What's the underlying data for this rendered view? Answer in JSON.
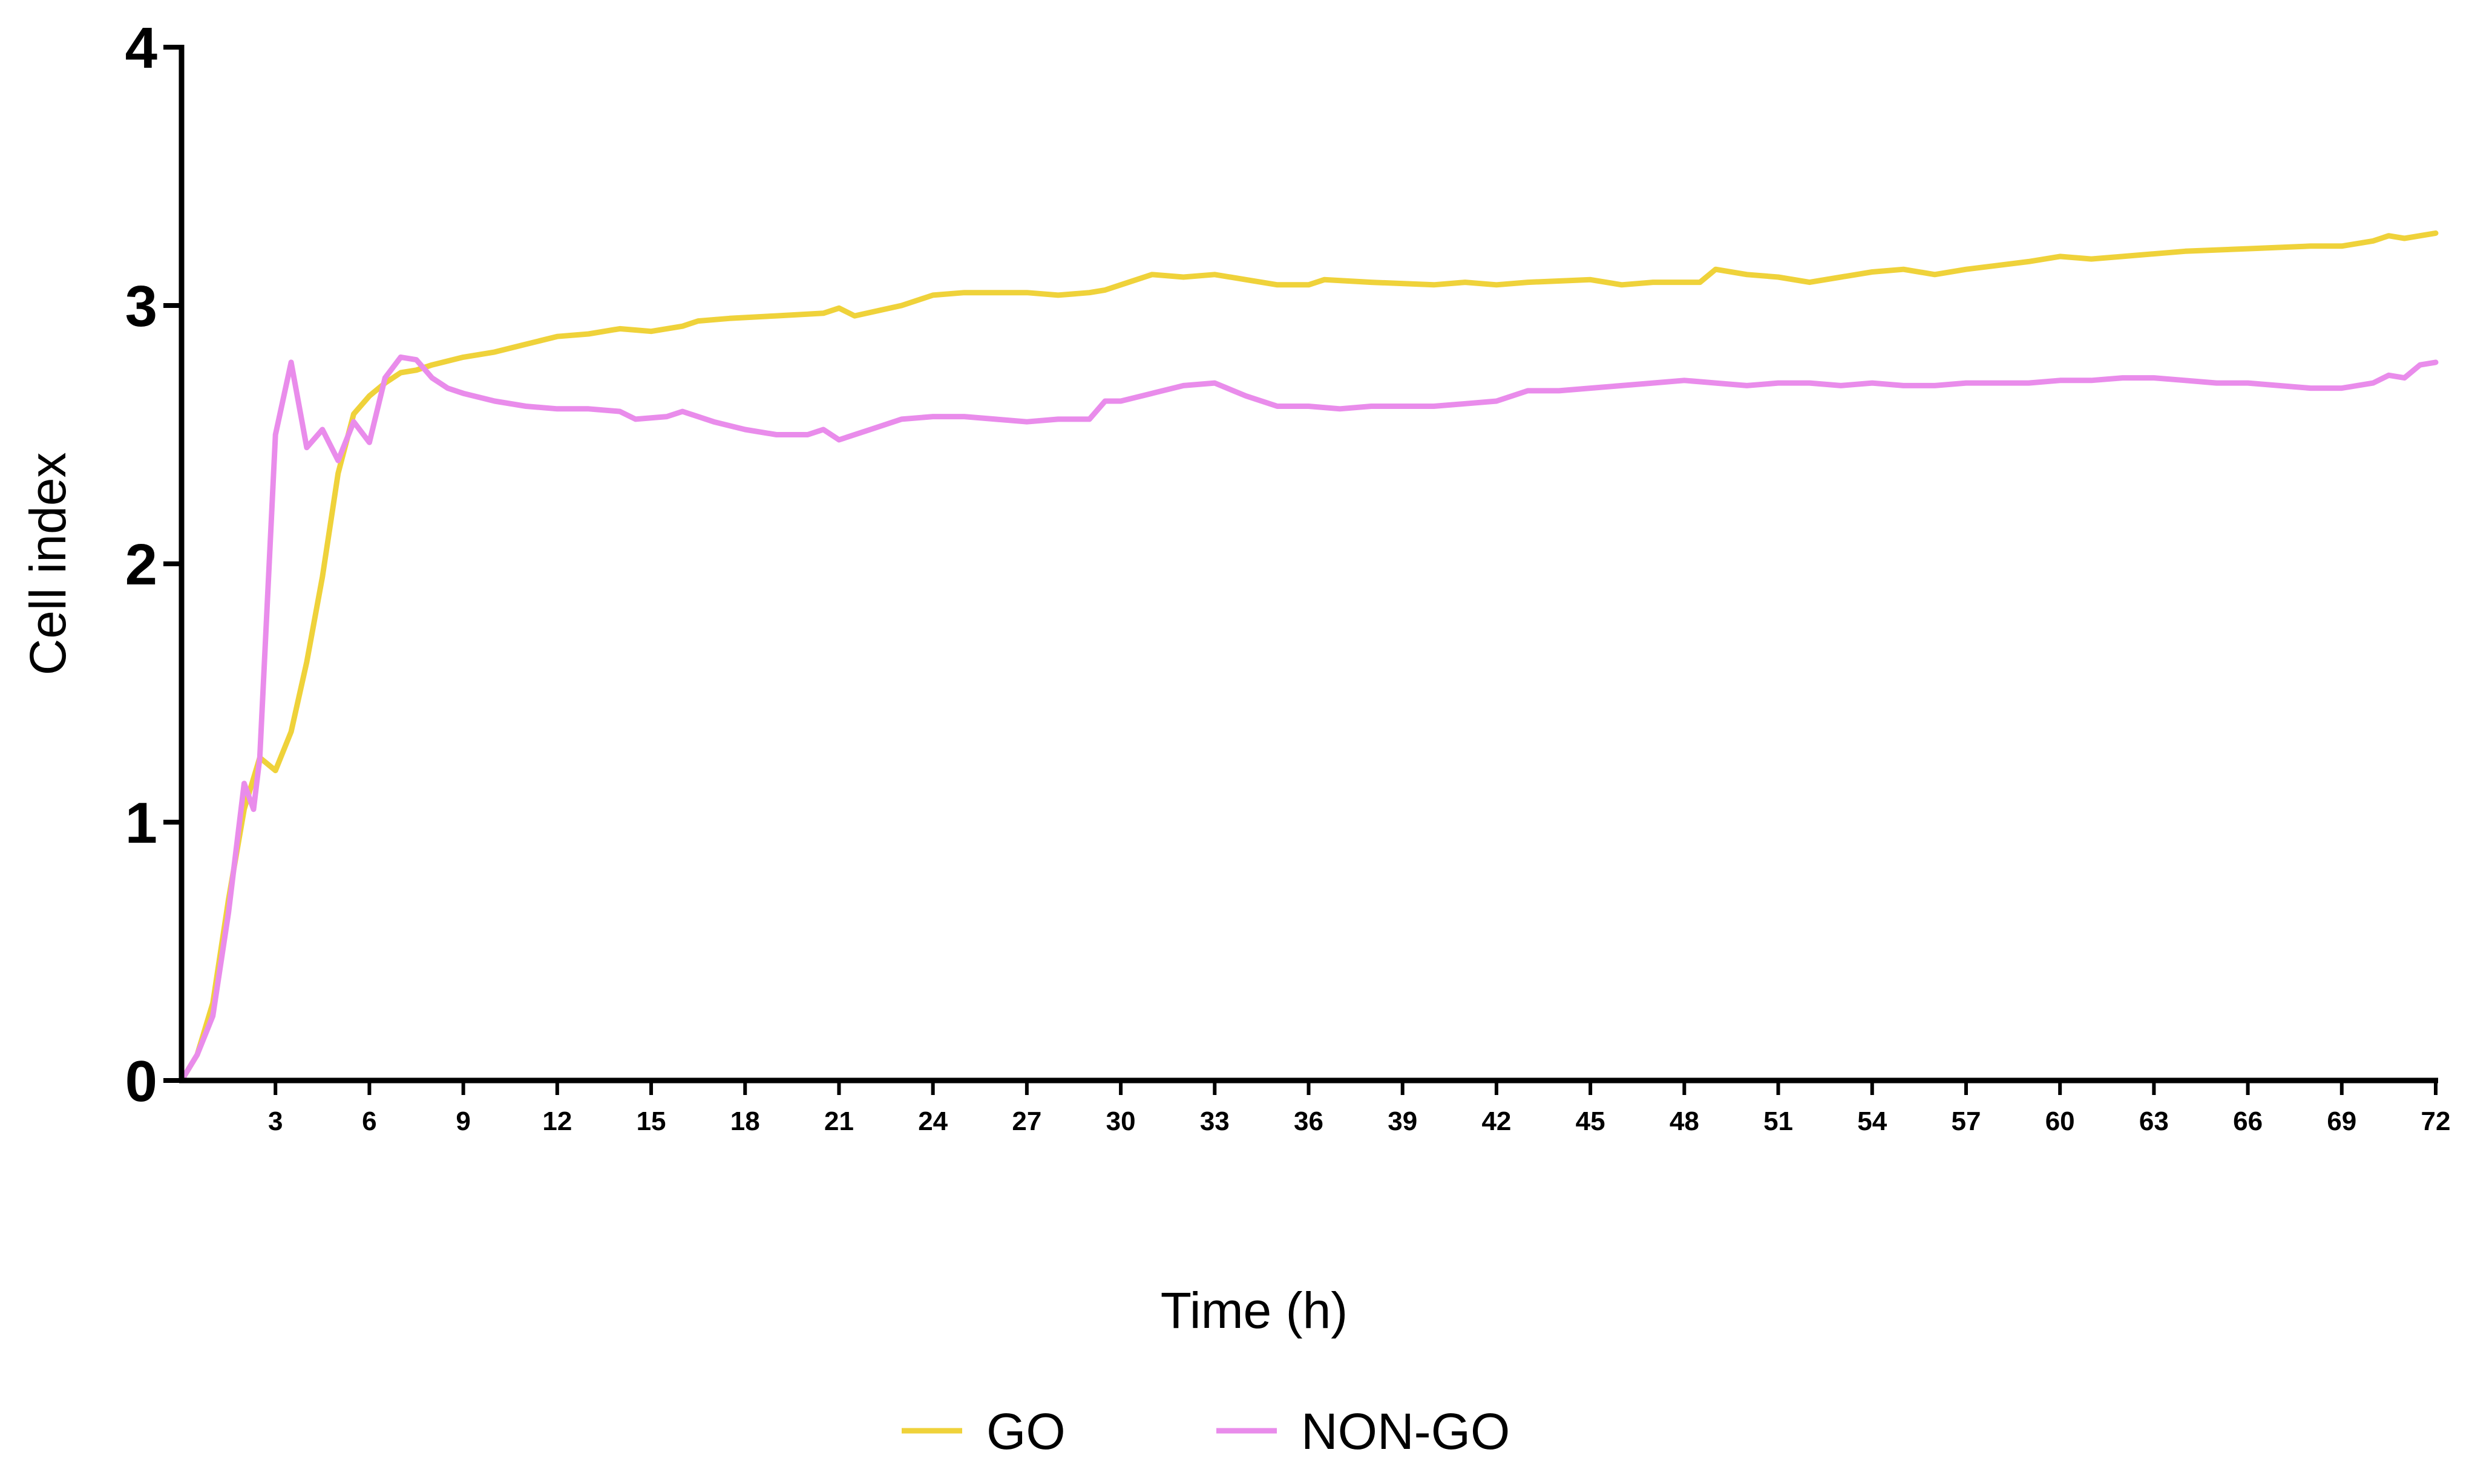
{
  "chart_data": {
    "type": "line",
    "title": "",
    "xlabel": "Time (h)",
    "ylabel": "Cell index",
    "xlim": [
      0,
      72
    ],
    "ylim": [
      0,
      4
    ],
    "x_ticks": [
      3,
      6,
      9,
      12,
      15,
      18,
      21,
      24,
      27,
      30,
      33,
      36,
      39,
      42,
      45,
      48,
      51,
      54,
      57,
      60,
      63,
      66,
      69,
      72
    ],
    "y_ticks": [
      0,
      1,
      2,
      3,
      4
    ],
    "grid": false,
    "legend_position": "bottom-center",
    "series": [
      {
        "name": "GO",
        "color": "#EFD23A",
        "points": [
          [
            0,
            0
          ],
          [
            0.5,
            0.1
          ],
          [
            1,
            0.3
          ],
          [
            1.5,
            0.7
          ],
          [
            2,
            1.05
          ],
          [
            2.5,
            1.25
          ],
          [
            3,
            1.2
          ],
          [
            3.5,
            1.35
          ],
          [
            4,
            1.62
          ],
          [
            4.5,
            1.95
          ],
          [
            5,
            2.35
          ],
          [
            5.5,
            2.58
          ],
          [
            6,
            2.65
          ],
          [
            6.5,
            2.7
          ],
          [
            7,
            2.74
          ],
          [
            7.5,
            2.75
          ],
          [
            8,
            2.77
          ],
          [
            9,
            2.8
          ],
          [
            10,
            2.82
          ],
          [
            11,
            2.85
          ],
          [
            12,
            2.88
          ],
          [
            13,
            2.89
          ],
          [
            14,
            2.91
          ],
          [
            15,
            2.9
          ],
          [
            16,
            2.92
          ],
          [
            16.5,
            2.94
          ],
          [
            17.5,
            2.95
          ],
          [
            19,
            2.96
          ],
          [
            20.5,
            2.97
          ],
          [
            21,
            2.99
          ],
          [
            21.5,
            2.96
          ],
          [
            23,
            3.0
          ],
          [
            24,
            3.04
          ],
          [
            25,
            3.05
          ],
          [
            27,
            3.05
          ],
          [
            28,
            3.04
          ],
          [
            29,
            3.05
          ],
          [
            29.5,
            3.06
          ],
          [
            30,
            3.08
          ],
          [
            31,
            3.12
          ],
          [
            32,
            3.11
          ],
          [
            33,
            3.12
          ],
          [
            34,
            3.1
          ],
          [
            35,
            3.08
          ],
          [
            36,
            3.08
          ],
          [
            36.5,
            3.1
          ],
          [
            38,
            3.09
          ],
          [
            40,
            3.08
          ],
          [
            41,
            3.09
          ],
          [
            42,
            3.08
          ],
          [
            43,
            3.09
          ],
          [
            45,
            3.1
          ],
          [
            46,
            3.08
          ],
          [
            47,
            3.09
          ],
          [
            48.5,
            3.09
          ],
          [
            49,
            3.14
          ],
          [
            50,
            3.12
          ],
          [
            51,
            3.11
          ],
          [
            52,
            3.09
          ],
          [
            53,
            3.11
          ],
          [
            54,
            3.13
          ],
          [
            55,
            3.14
          ],
          [
            56,
            3.12
          ],
          [
            57,
            3.14
          ],
          [
            59,
            3.17
          ],
          [
            60,
            3.19
          ],
          [
            61,
            3.18
          ],
          [
            62,
            3.19
          ],
          [
            64,
            3.21
          ],
          [
            66,
            3.22
          ],
          [
            68,
            3.23
          ],
          [
            69,
            3.23
          ],
          [
            70,
            3.25
          ],
          [
            70.5,
            3.27
          ],
          [
            71,
            3.26
          ],
          [
            72,
            3.28
          ]
        ]
      },
      {
        "name": "NON-GO",
        "color": "#E98CEB",
        "points": [
          [
            0,
            0
          ],
          [
            0.5,
            0.1
          ],
          [
            1,
            0.25
          ],
          [
            1.5,
            0.65
          ],
          [
            2,
            1.15
          ],
          [
            2.3,
            1.05
          ],
          [
            2.5,
            1.25
          ],
          [
            3,
            2.5
          ],
          [
            3.5,
            2.78
          ],
          [
            4,
            2.45
          ],
          [
            4.5,
            2.52
          ],
          [
            5,
            2.4
          ],
          [
            5.5,
            2.55
          ],
          [
            6,
            2.47
          ],
          [
            6.5,
            2.72
          ],
          [
            7,
            2.8
          ],
          [
            7.5,
            2.79
          ],
          [
            8,
            2.72
          ],
          [
            8.5,
            2.68
          ],
          [
            9,
            2.66
          ],
          [
            10,
            2.63
          ],
          [
            11,
            2.61
          ],
          [
            12,
            2.6
          ],
          [
            13,
            2.6
          ],
          [
            14,
            2.59
          ],
          [
            14.5,
            2.56
          ],
          [
            15.5,
            2.57
          ],
          [
            16,
            2.59
          ],
          [
            17,
            2.55
          ],
          [
            18,
            2.52
          ],
          [
            19,
            2.5
          ],
          [
            20,
            2.5
          ],
          [
            20.5,
            2.52
          ],
          [
            21,
            2.48
          ],
          [
            22,
            2.52
          ],
          [
            23,
            2.56
          ],
          [
            24,
            2.57
          ],
          [
            25,
            2.57
          ],
          [
            26,
            2.56
          ],
          [
            27,
            2.55
          ],
          [
            28,
            2.56
          ],
          [
            29,
            2.56
          ],
          [
            29.5,
            2.63
          ],
          [
            30,
            2.63
          ],
          [
            31,
            2.66
          ],
          [
            32,
            2.69
          ],
          [
            33,
            2.7
          ],
          [
            34,
            2.65
          ],
          [
            35,
            2.61
          ],
          [
            36,
            2.61
          ],
          [
            37,
            2.6
          ],
          [
            38,
            2.61
          ],
          [
            39,
            2.61
          ],
          [
            40,
            2.61
          ],
          [
            41,
            2.62
          ],
          [
            42,
            2.63
          ],
          [
            43,
            2.67
          ],
          [
            44,
            2.67
          ],
          [
            45,
            2.68
          ],
          [
            46,
            2.69
          ],
          [
            47,
            2.7
          ],
          [
            48,
            2.71
          ],
          [
            49,
            2.7
          ],
          [
            50,
            2.69
          ],
          [
            51,
            2.7
          ],
          [
            52,
            2.7
          ],
          [
            53,
            2.69
          ],
          [
            54,
            2.7
          ],
          [
            55,
            2.69
          ],
          [
            56,
            2.69
          ],
          [
            57,
            2.7
          ],
          [
            58,
            2.7
          ],
          [
            59,
            2.7
          ],
          [
            60,
            2.71
          ],
          [
            61,
            2.71
          ],
          [
            62,
            2.72
          ],
          [
            63,
            2.72
          ],
          [
            64,
            2.71
          ],
          [
            65,
            2.7
          ],
          [
            66,
            2.7
          ],
          [
            67,
            2.69
          ],
          [
            68,
            2.68
          ],
          [
            69,
            2.68
          ],
          [
            70,
            2.7
          ],
          [
            70.5,
            2.73
          ],
          [
            71,
            2.72
          ],
          [
            71.5,
            2.77
          ],
          [
            72,
            2.78
          ]
        ]
      }
    ]
  }
}
